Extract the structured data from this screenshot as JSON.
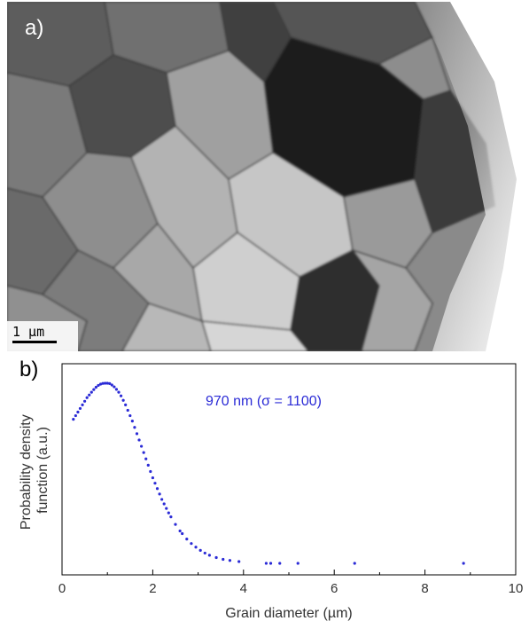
{
  "panel_a": {
    "label": "a)",
    "scale_bar": "1 µm"
  },
  "panel_b": {
    "label": "b)"
  },
  "chart_data": {
    "type": "scatter",
    "xlabel": "Grain diameter (µm)",
    "ylabel": "Probability density function (a.u.)",
    "ylabel_lines": [
      "Probability density",
      "function (a.u.)"
    ],
    "xlim": [
      0,
      10
    ],
    "x_ticks": [
      "0",
      "2",
      "4",
      "6",
      "8",
      "10"
    ],
    "annotation": "970 nm (σ = 1100)",
    "series_color": "#2b2bd6",
    "y_axis_ticks_shown": false,
    "points": [
      [
        0.25,
        0.8
      ],
      [
        0.3,
        0.82
      ],
      [
        0.35,
        0.84
      ],
      [
        0.4,
        0.86
      ],
      [
        0.45,
        0.88
      ],
      [
        0.5,
        0.9
      ],
      [
        0.55,
        0.92
      ],
      [
        0.6,
        0.935
      ],
      [
        0.65,
        0.95
      ],
      [
        0.7,
        0.965
      ],
      [
        0.75,
        0.978
      ],
      [
        0.8,
        0.988
      ],
      [
        0.85,
        0.995
      ],
      [
        0.9,
        0.999
      ],
      [
        0.95,
        1.0
      ],
      [
        1.0,
        1.0
      ],
      [
        1.05,
        0.998
      ],
      [
        1.1,
        0.99
      ],
      [
        1.15,
        0.98
      ],
      [
        1.2,
        0.966
      ],
      [
        1.25,
        0.95
      ],
      [
        1.3,
        0.93
      ],
      [
        1.35,
        0.905
      ],
      [
        1.4,
        0.88
      ],
      [
        1.45,
        0.85
      ],
      [
        1.5,
        0.82
      ],
      [
        1.55,
        0.79
      ],
      [
        1.6,
        0.755
      ],
      [
        1.65,
        0.72
      ],
      [
        1.7,
        0.685
      ],
      [
        1.75,
        0.65
      ],
      [
        1.8,
        0.615
      ],
      [
        1.85,
        0.58
      ],
      [
        1.9,
        0.545
      ],
      [
        1.95,
        0.51
      ],
      [
        2.0,
        0.475
      ],
      [
        2.05,
        0.445
      ],
      [
        2.1,
        0.415
      ],
      [
        2.15,
        0.385
      ],
      [
        2.2,
        0.355
      ],
      [
        2.25,
        0.33
      ],
      [
        2.3,
        0.305
      ],
      [
        2.35,
        0.28
      ],
      [
        2.4,
        0.258
      ],
      [
        2.5,
        0.216
      ],
      [
        2.6,
        0.18
      ],
      [
        2.65,
        0.165
      ],
      [
        2.75,
        0.135
      ],
      [
        2.85,
        0.11
      ],
      [
        2.95,
        0.09
      ],
      [
        3.05,
        0.072
      ],
      [
        3.15,
        0.057
      ],
      [
        3.25,
        0.045
      ],
      [
        3.4,
        0.032
      ],
      [
        3.55,
        0.022
      ],
      [
        3.7,
        0.016
      ],
      [
        3.9,
        0.01
      ],
      [
        4.5,
        0.0
      ],
      [
        4.6,
        0.0
      ],
      [
        4.8,
        0.0
      ],
      [
        5.2,
        0.0
      ],
      [
        6.45,
        0.0
      ],
      [
        8.85,
        0.0
      ]
    ]
  }
}
